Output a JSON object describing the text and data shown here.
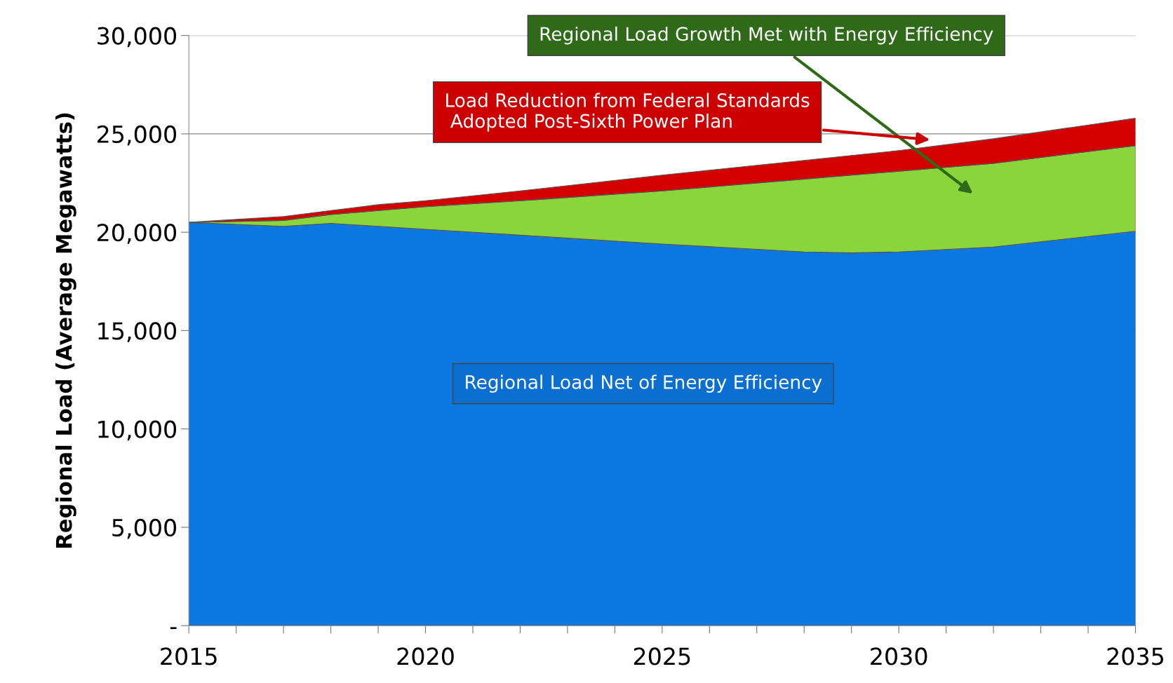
{
  "chart_data": {
    "type": "area",
    "stacked": true,
    "ylabel": "Regional Load (Average Megawatts)",
    "x": [
      2015,
      2016,
      2017,
      2018,
      2019,
      2020,
      2022,
      2025,
      2028,
      2029,
      2030,
      2032,
      2035
    ],
    "series": [
      {
        "name": "Regional Load Net of Energy Efficiency",
        "color": "#0a78e0",
        "values": [
          20500,
          20400,
          20300,
          20450,
          20300,
          20150,
          19850,
          19400,
          19000,
          18950,
          19000,
          19250,
          20050
        ]
      },
      {
        "name": "Regional Load Growth Met with Energy Efficiency",
        "color": "#8ad43c",
        "values": [
          0,
          150,
          300,
          450,
          800,
          1150,
          1750,
          2700,
          3700,
          3950,
          4100,
          4250,
          4350
        ]
      },
      {
        "name": "Load Reduction from Federal Standards\n Adopted Post-Sixth Power Plan",
        "color": "#d40000",
        "values": [
          0,
          100,
          200,
          200,
          300,
          300,
          500,
          800,
          950,
          1000,
          1050,
          1250,
          1400
        ]
      }
    ],
    "xlim": [
      2015,
      2035
    ],
    "xticks": [
      2015,
      {
        "value": 2016,
        "label": null
      },
      {
        "value": 2017,
        "label": null
      },
      {
        "value": 2018,
        "label": null
      },
      {
        "value": 2019,
        "label": null
      },
      2020,
      {
        "value": 2021,
        "label": null
      },
      {
        "value": 2022,
        "label": null
      },
      {
        "value": 2023,
        "label": null
      },
      {
        "value": 2024,
        "label": null
      },
      2025,
      {
        "value": 2026,
        "label": null
      },
      {
        "value": 2027,
        "label": null
      },
      {
        "value": 2028,
        "label": null
      },
      {
        "value": 2029,
        "label": null
      },
      2030,
      {
        "value": 2031,
        "label": null
      },
      {
        "value": 2032,
        "label": null
      },
      {
        "value": 2033,
        "label": null
      },
      {
        "value": 2034,
        "label": null
      },
      2035
    ],
    "ylim": [
      0,
      30000
    ],
    "yticks": [
      {
        "value": 0,
        "label": "-"
      },
      {
        "value": 5000,
        "label": "5,000"
      },
      {
        "value": 10000,
        "label": "10,000"
      },
      {
        "value": 15000,
        "label": "15,000"
      },
      {
        "value": 20000,
        "label": "20,000"
      },
      {
        "value": 25000,
        "label": "25,000"
      },
      {
        "value": 30000,
        "label": "30,000"
      }
    ],
    "grid": "y",
    "legend": false
  }
}
